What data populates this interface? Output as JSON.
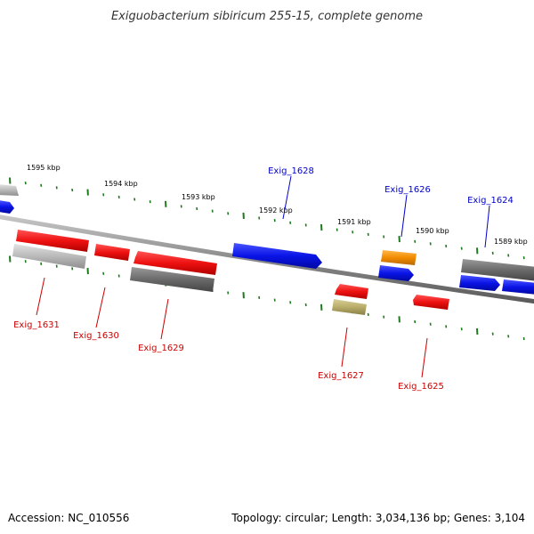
{
  "title": "Exiguobacterium sibiricum 255-15, complete genome",
  "footer": {
    "accession": "Accession: NC_010556",
    "summary": "Topology: circular; Length: 3,034,136 bp; Genes: 3,104"
  },
  "colors": {
    "backbone": "#8a8a8a",
    "tick": "#1f7a1f",
    "forward_label": "#0000cc",
    "reverse_label": "#cc0000",
    "gene_blue": "#0a14e6",
    "gene_red": "#ee1111",
    "gene_orange": "#f28c00",
    "gene_khaki": "#b8ad6a",
    "gene_dark": "#6a6a6a",
    "gene_light": "#b9b9b9"
  },
  "scale_labels": [
    "1595 kbp",
    "1594 kbp",
    "1593 kbp",
    "1592 kbp",
    "1591 kbp",
    "1590 kbp",
    "1589 kbp"
  ],
  "forward_gene_labels": [
    "Exig_1628",
    "Exig_1626",
    "Exig_1624"
  ],
  "reverse_gene_labels": [
    "Exig_1631",
    "Exig_1630",
    "Exig_1629",
    "Exig_1627",
    "Exig_1625"
  ],
  "gene_colors": [
    "gene-blue",
    "gene-red",
    "gene-orange",
    "gene-khaki",
    "gene-dark",
    "gene-light"
  ]
}
